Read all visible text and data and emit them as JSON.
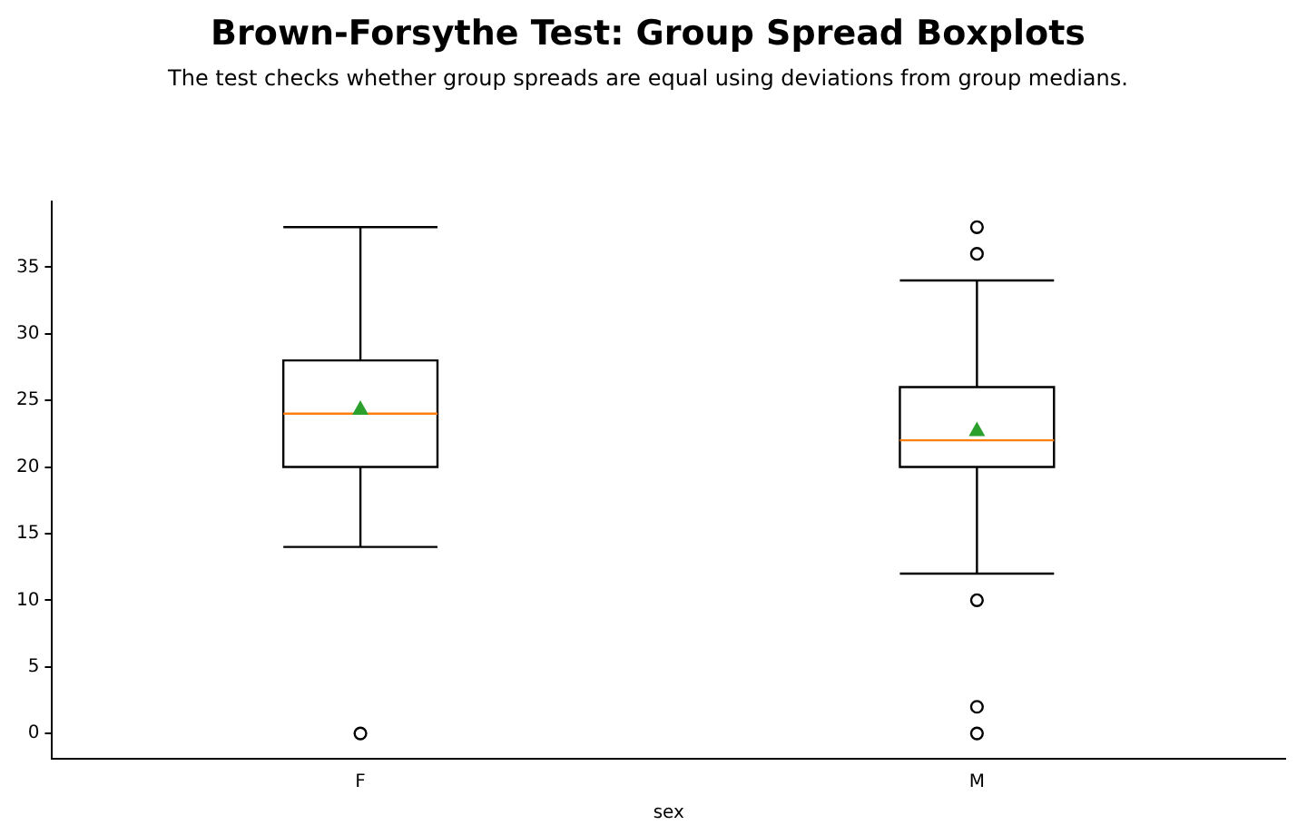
{
  "chart_data": {
    "type": "box",
    "title": "Brown-Forsythe Test: Group Spread Boxplots",
    "subtitle": "The test checks whether group spreads are equal using deviations from group medians.",
    "xlabel": "sex",
    "categories": [
      "F",
      "M"
    ],
    "boxes": [
      {
        "low": 14,
        "q1": 20,
        "median": 24,
        "q3": 28,
        "high": 38,
        "mean": 24.4,
        "outliers": [
          0
        ]
      },
      {
        "low": 12,
        "q1": 20,
        "median": 22,
        "q3": 26,
        "high": 34,
        "mean": 22.8,
        "outliers": [
          36,
          38,
          10,
          2,
          0
        ]
      }
    ],
    "ylim": [
      -1.9,
      39.9
    ],
    "yticks": [
      0,
      5,
      10,
      15,
      20,
      25,
      30,
      35
    ],
    "grid": false,
    "legend": false
  }
}
